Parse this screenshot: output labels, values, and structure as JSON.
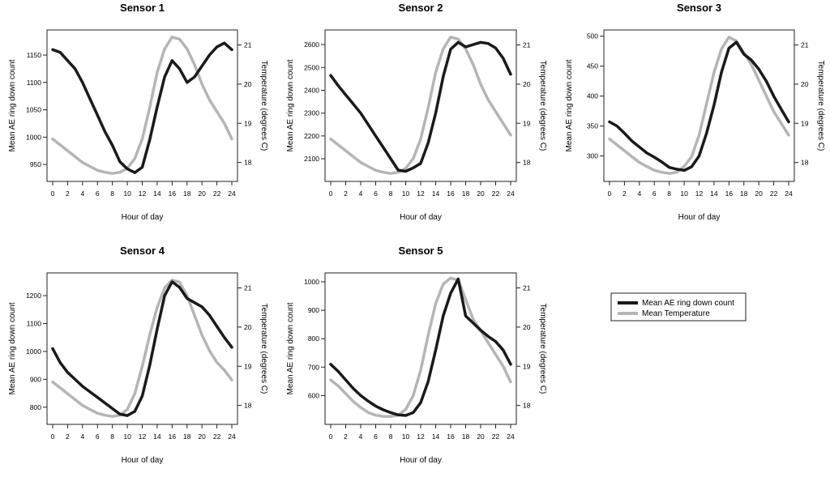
{
  "chart_data": [
    {
      "type": "line",
      "title": "Sensor 1",
      "xlabel": "Hour of day",
      "ylabel": "Mean AE ring down count",
      "y2label": "Temperature (degrees C)",
      "xlim": [
        0,
        24
      ],
      "xticks": [
        0,
        2,
        4,
        6,
        8,
        10,
        12,
        14,
        16,
        18,
        20,
        22,
        24
      ],
      "ylim": [
        925,
        1190
      ],
      "yticks": [
        950,
        1000,
        1050,
        1100,
        1150
      ],
      "y2lim": [
        17.6,
        21.3
      ],
      "y2ticks": [
        18,
        19,
        20,
        21
      ],
      "x": [
        0,
        1,
        2,
        3,
        4,
        5,
        6,
        7,
        8,
        9,
        10,
        11,
        12,
        13,
        14,
        15,
        16,
        17,
        18,
        19,
        20,
        21,
        22,
        23,
        24
      ],
      "series": [
        {
          "name": "Mean AE ring down count",
          "axis": "left",
          "color": "#1a1a1a",
          "values": [
            1160,
            1155,
            1140,
            1125,
            1100,
            1070,
            1040,
            1010,
            985,
            955,
            942,
            935,
            945,
            995,
            1055,
            1110,
            1140,
            1125,
            1100,
            1110,
            1130,
            1150,
            1165,
            1172,
            1160
          ]
        },
        {
          "name": "Mean Temperature",
          "axis": "right",
          "color": "#b5b5b5",
          "values": [
            18.6,
            18.45,
            18.3,
            18.15,
            18.0,
            17.9,
            17.8,
            17.75,
            17.72,
            17.75,
            17.85,
            18.1,
            18.6,
            19.4,
            20.3,
            20.9,
            21.2,
            21.15,
            20.9,
            20.5,
            20.0,
            19.6,
            19.3,
            19.0,
            18.6
          ]
        }
      ]
    },
    {
      "type": "line",
      "title": "Sensor 2",
      "xlabel": "Hour of day",
      "ylabel": "Mean AE ring down count",
      "y2label": "Temperature (degrees C)",
      "xlim": [
        0,
        24
      ],
      "xticks": [
        0,
        2,
        4,
        6,
        8,
        10,
        12,
        14,
        16,
        18,
        20,
        22,
        24
      ],
      "ylim": [
        2015,
        2650
      ],
      "yticks": [
        2100,
        2200,
        2300,
        2400,
        2500,
        2600
      ],
      "y2lim": [
        17.6,
        21.3
      ],
      "y2ticks": [
        18,
        19,
        20,
        21
      ],
      "x": [
        0,
        1,
        2,
        3,
        4,
        5,
        6,
        7,
        8,
        9,
        10,
        11,
        12,
        13,
        14,
        15,
        16,
        17,
        18,
        19,
        20,
        21,
        22,
        23,
        24
      ],
      "series": [
        {
          "name": "Mean AE ring down count",
          "axis": "left",
          "color": "#1a1a1a",
          "values": [
            2465,
            2420,
            2380,
            2340,
            2300,
            2250,
            2200,
            2150,
            2100,
            2050,
            2045,
            2060,
            2080,
            2170,
            2300,
            2460,
            2580,
            2610,
            2590,
            2600,
            2610,
            2605,
            2585,
            2540,
            2470
          ]
        },
        {
          "name": "Mean Temperature",
          "axis": "right",
          "color": "#b5b5b5",
          "values": [
            18.6,
            18.45,
            18.3,
            18.15,
            18.0,
            17.9,
            17.8,
            17.75,
            17.72,
            17.75,
            17.85,
            18.1,
            18.6,
            19.4,
            20.3,
            20.9,
            21.2,
            21.15,
            20.9,
            20.5,
            20.0,
            19.6,
            19.3,
            19.0,
            18.7
          ]
        }
      ]
    },
    {
      "type": "line",
      "title": "Sensor 3",
      "xlabel": "Hour of day",
      "ylabel": "Mean AE ring down count",
      "y2label": "Temperature (degrees C)",
      "xlim": [
        0,
        24
      ],
      "xticks": [
        0,
        2,
        4,
        6,
        8,
        10,
        12,
        14,
        16,
        18,
        20,
        22,
        24
      ],
      "ylim": [
        263,
        505
      ],
      "yticks": [
        300,
        350,
        400,
        450,
        500
      ],
      "y2lim": [
        17.6,
        21.3
      ],
      "y2ticks": [
        18,
        19,
        20,
        21
      ],
      "x": [
        0,
        1,
        2,
        3,
        4,
        5,
        6,
        7,
        8,
        9,
        10,
        11,
        12,
        13,
        14,
        15,
        16,
        17,
        18,
        19,
        20,
        21,
        22,
        23,
        24
      ],
      "series": [
        {
          "name": "Mean AE ring down count",
          "axis": "left",
          "color": "#1a1a1a",
          "values": [
            357,
            350,
            338,
            325,
            315,
            305,
            298,
            290,
            281,
            278,
            276,
            282,
            300,
            338,
            385,
            440,
            480,
            490,
            470,
            460,
            445,
            425,
            400,
            378,
            357
          ]
        },
        {
          "name": "Mean Temperature",
          "axis": "right",
          "color": "#b5b5b5",
          "values": [
            18.6,
            18.45,
            18.3,
            18.15,
            18.0,
            17.9,
            17.8,
            17.75,
            17.72,
            17.75,
            17.9,
            18.15,
            18.7,
            19.5,
            20.3,
            20.9,
            21.2,
            21.1,
            20.8,
            20.5,
            20.1,
            19.7,
            19.3,
            19.0,
            18.7
          ]
        }
      ]
    },
    {
      "type": "line",
      "title": "Sensor 4",
      "xlabel": "Hour of day",
      "ylabel": "Mean AE ring down count",
      "y2label": "Temperature (degrees C)",
      "xlim": [
        0,
        24
      ],
      "xticks": [
        0,
        2,
        4,
        6,
        8,
        10,
        12,
        14,
        16,
        18,
        20,
        22,
        24
      ],
      "ylim": [
        750,
        1270
      ],
      "yticks": [
        800,
        900,
        1000,
        1100,
        1200
      ],
      "y2lim": [
        17.6,
        21.3
      ],
      "y2ticks": [
        18,
        19,
        20,
        21
      ],
      "x": [
        0,
        1,
        2,
        3,
        4,
        5,
        6,
        7,
        8,
        9,
        10,
        11,
        12,
        13,
        14,
        15,
        16,
        17,
        18,
        19,
        20,
        21,
        22,
        23,
        24
      ],
      "series": [
        {
          "name": "Mean AE ring down count",
          "axis": "left",
          "color": "#1a1a1a",
          "values": [
            1010,
            960,
            925,
            900,
            875,
            855,
            835,
            815,
            795,
            775,
            770,
            785,
            840,
            950,
            1080,
            1200,
            1250,
            1230,
            1190,
            1175,
            1160,
            1130,
            1090,
            1050,
            1015
          ]
        },
        {
          "name": "Mean Temperature",
          "axis": "right",
          "color": "#b5b5b5",
          "values": [
            18.6,
            18.45,
            18.3,
            18.15,
            18.0,
            17.9,
            17.8,
            17.75,
            17.72,
            17.75,
            17.9,
            18.3,
            19.0,
            19.8,
            20.5,
            21.0,
            21.2,
            21.15,
            20.8,
            20.3,
            19.8,
            19.4,
            19.1,
            18.9,
            18.65
          ]
        }
      ]
    },
    {
      "type": "line",
      "title": "Sensor 5",
      "xlabel": "Hour of day",
      "ylabel": "Mean AE ring down count",
      "y2label": "Temperature (degrees C)",
      "xlim": [
        0,
        24
      ],
      "xticks": [
        0,
        2,
        4,
        6,
        8,
        10,
        12,
        14,
        16,
        18,
        20,
        22,
        24
      ],
      "ylim": [
        510,
        1020
      ],
      "yticks": [
        600,
        700,
        800,
        900,
        1000
      ],
      "y2lim": [
        17.6,
        21.3
      ],
      "y2ticks": [
        18,
        19,
        20,
        21
      ],
      "x": [
        0,
        1,
        2,
        3,
        4,
        5,
        6,
        7,
        8,
        9,
        10,
        11,
        12,
        13,
        14,
        15,
        16,
        17,
        18,
        19,
        20,
        21,
        22,
        23,
        24
      ],
      "series": [
        {
          "name": "Mean AE ring down count",
          "axis": "left",
          "color": "#1a1a1a",
          "values": [
            710,
            685,
            655,
            625,
            600,
            580,
            563,
            550,
            540,
            532,
            530,
            540,
            575,
            650,
            760,
            880,
            960,
            1010,
            880,
            855,
            830,
            808,
            790,
            760,
            710
          ]
        },
        {
          "name": "Mean Temperature",
          "axis": "right",
          "color": "#b5b5b5",
          "values": [
            18.65,
            18.5,
            18.3,
            18.1,
            17.95,
            17.82,
            17.75,
            17.72,
            17.72,
            17.75,
            17.9,
            18.25,
            18.9,
            19.8,
            20.6,
            21.1,
            21.25,
            21.2,
            20.7,
            20.2,
            19.9,
            19.6,
            19.3,
            19.0,
            18.6
          ]
        }
      ]
    }
  ],
  "legend": {
    "items": [
      {
        "label": "Mean AE ring down count",
        "color": "#1a1a1a"
      },
      {
        "label": "Mean Temperature",
        "color": "#b5b5b5"
      }
    ]
  }
}
